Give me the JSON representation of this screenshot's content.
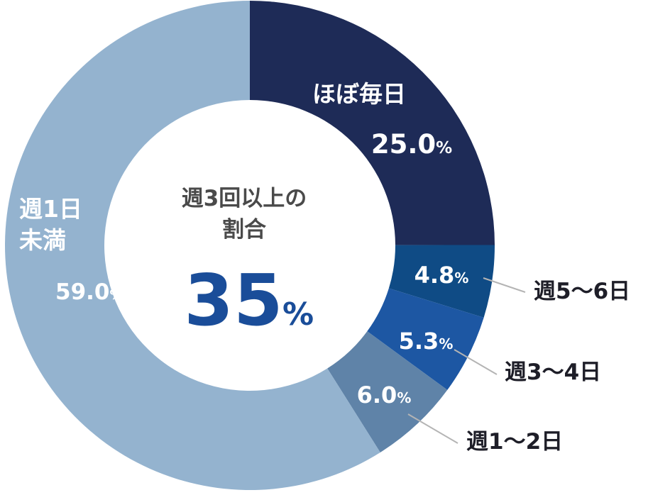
{
  "chart_data": {
    "type": "donut",
    "slices": [
      {
        "label_lines": [
          "ほぼ毎日"
        ],
        "value": 25.0,
        "display": "25.0",
        "color": "#1e2b57"
      },
      {
        "label_lines": [
          "週5〜6日"
        ],
        "value": 4.8,
        "display": "4.8",
        "color": "#0f4b85"
      },
      {
        "label_lines": [
          "週3〜4日"
        ],
        "value": 5.3,
        "display": "5.3",
        "color": "#1d57a3"
      },
      {
        "label_lines": [
          "週1〜2日"
        ],
        "value": 6.0,
        "display": "6.0",
        "color": "#5f83a8"
      },
      {
        "label_lines": [
          "週1日",
          "未満"
        ],
        "value": 59.0,
        "display": "59.0",
        "color": "#94b3cf"
      }
    ],
    "unit": "%",
    "center": {
      "title_lines": [
        "週3回以上の",
        "割合"
      ],
      "value": "35",
      "unit": "%"
    }
  }
}
